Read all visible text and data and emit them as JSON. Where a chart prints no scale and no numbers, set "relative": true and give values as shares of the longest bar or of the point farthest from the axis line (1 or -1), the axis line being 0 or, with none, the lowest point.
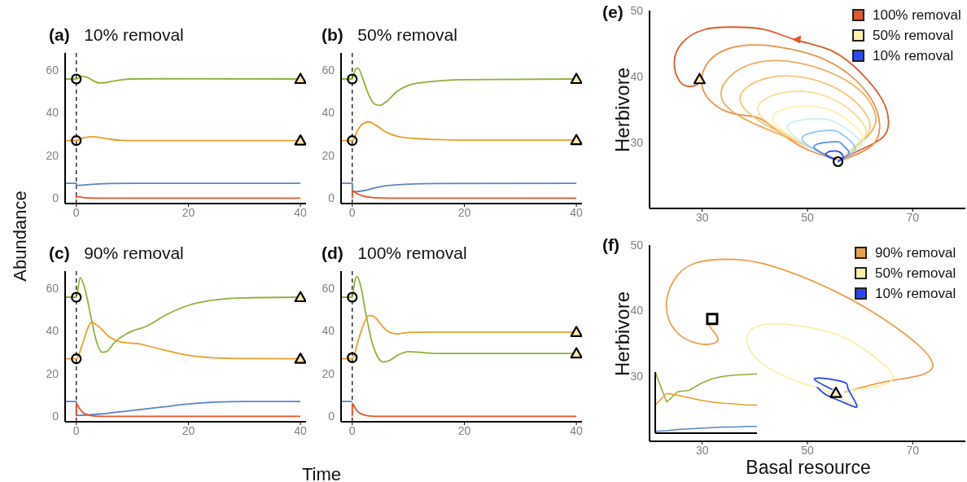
{
  "chart_data": [
    {
      "type": "line",
      "title": "(a)   10% removal",
      "ylabel": "Abundance",
      "xlim": [
        -2,
        41
      ],
      "ylim": [
        -2.5,
        68
      ],
      "xticks": [
        0,
        20,
        40
      ],
      "yticks": [
        0,
        20,
        40,
        60
      ],
      "ref_lines": [
        {
          "axis": "x",
          "value": 0,
          "line_style": "dashed",
          "color": "#000000"
        }
      ],
      "series": [
        {
          "color": "#8db33a",
          "x": [
            -2,
            0,
            1,
            2,
            3,
            4,
            5,
            6,
            8,
            10,
            15,
            40
          ],
          "values": [
            55.8,
            55.8,
            57,
            56.5,
            55,
            54,
            54,
            54.5,
            55.4,
            55.8,
            55.9,
            55.8
          ]
        },
        {
          "color": "#e8a02a",
          "x": [
            -2,
            0,
            1,
            2,
            3,
            4,
            6,
            8,
            10,
            40
          ],
          "values": [
            27,
            27,
            28,
            28.6,
            28.8,
            28.5,
            27.6,
            27.1,
            27,
            27
          ]
        },
        {
          "color": "#5c85c3",
          "x": [
            -2,
            0,
            0,
            2,
            4,
            6,
            10,
            40
          ],
          "values": [
            7,
            7,
            6,
            6.3,
            6.7,
            6.9,
            7,
            7
          ]
        },
        {
          "color": "#e8532a",
          "x": [
            0,
            0,
            1,
            2,
            4,
            40
          ],
          "values": [
            0,
            0.8,
            0.4,
            0.1,
            0,
            0
          ]
        },
        {
          "type": "scatter",
          "marker": "circle",
          "color": "#000000",
          "x": [
            0,
            0
          ],
          "values": [
            55.8,
            27
          ]
        },
        {
          "type": "scatter",
          "marker": "triangle",
          "color": "#000000",
          "x": [
            40,
            40
          ],
          "values": [
            55.8,
            27
          ]
        }
      ]
    },
    {
      "type": "line",
      "title": "(b)   50% removal",
      "xlim": [
        -2,
        41
      ],
      "ylim": [
        -2.5,
        68
      ],
      "xticks": [
        0,
        20,
        40
      ],
      "yticks": [
        0,
        20,
        40,
        60
      ],
      "ref_lines": [
        {
          "axis": "x",
          "value": 0,
          "line_style": "dashed",
          "color": "#000000"
        }
      ],
      "series": [
        {
          "color": "#8db33a",
          "x": [
            -2,
            0,
            0.5,
            1,
            2,
            3,
            4,
            5,
            6,
            8,
            10,
            13,
            20,
            40
          ],
          "values": [
            55.8,
            55.8,
            60,
            61,
            55,
            48,
            44,
            43.5,
            45,
            50,
            52.8,
            54.3,
            55.5,
            55.8
          ]
        },
        {
          "color": "#e8a02a",
          "x": [
            -2,
            0,
            1,
            2,
            3,
            4,
            6,
            8,
            10,
            15,
            20,
            40
          ],
          "values": [
            27,
            27,
            32,
            35,
            35.7,
            34.5,
            31,
            29,
            28.2,
            27.5,
            27.2,
            27.2
          ]
        },
        {
          "color": "#5c85c3",
          "x": [
            -2,
            0,
            0,
            2,
            4,
            6,
            8,
            10,
            15,
            40
          ],
          "values": [
            7,
            7,
            3,
            3.5,
            4.8,
            5.8,
            6.3,
            6.6,
            6.9,
            7
          ]
        },
        {
          "color": "#e8532a",
          "x": [
            0,
            0,
            1,
            2,
            3,
            5,
            8,
            40
          ],
          "values": [
            0,
            3.5,
            2,
            1,
            0.5,
            0.1,
            0,
            0
          ]
        },
        {
          "type": "scatter",
          "marker": "circle",
          "color": "#000000",
          "x": [
            0,
            0
          ],
          "values": [
            55.8,
            27
          ]
        },
        {
          "type": "scatter",
          "marker": "triangle",
          "color": "#000000",
          "x": [
            40,
            40
          ],
          "values": [
            55.8,
            27.2
          ]
        }
      ]
    },
    {
      "type": "line",
      "title": "(c)   90% removal",
      "xlabel": "Time",
      "xlim": [
        -2,
        41
      ],
      "ylim": [
        -2.5,
        68
      ],
      "xticks": [
        0,
        20,
        40
      ],
      "yticks": [
        0,
        20,
        40,
        60
      ],
      "ref_lines": [
        {
          "axis": "x",
          "value": 0,
          "line_style": "dashed",
          "color": "#000000"
        }
      ],
      "series": [
        {
          "color": "#8db33a",
          "x": [
            -2,
            0,
            0.7,
            1.5,
            2.5,
            3.5,
            4.6,
            5.5,
            6.8,
            9.2,
            12.6,
            16,
            20,
            25,
            30,
            40
          ],
          "values": [
            55.8,
            55.8,
            65,
            60,
            48,
            36,
            30,
            30.5,
            34.6,
            39,
            42.3,
            47.5,
            52,
            54.6,
            55.5,
            55.8
          ]
        },
        {
          "color": "#e8a02a",
          "x": [
            -2,
            0,
            1,
            2,
            2.7,
            4,
            6,
            8,
            11,
            15,
            20,
            25,
            30,
            40
          ],
          "values": [
            27,
            27,
            33,
            41,
            44,
            42,
            37,
            34.8,
            34,
            31.5,
            28.6,
            27.4,
            27.1,
            27
          ]
        },
        {
          "color": "#5c85c3",
          "x": [
            -2,
            0,
            0,
            5,
            10,
            15,
            20,
            25,
            30,
            40
          ],
          "values": [
            7,
            7,
            0.5,
            1.3,
            2.8,
            4.3,
            5.8,
            6.7,
            7,
            7
          ]
        },
        {
          "color": "#e8532a",
          "x": [
            0,
            0,
            0.5,
            1,
            2,
            3,
            5,
            40
          ],
          "values": [
            0,
            6,
            4,
            2.2,
            0.8,
            0.2,
            0,
            0
          ]
        },
        {
          "type": "scatter",
          "marker": "circle",
          "color": "#000000",
          "x": [
            0,
            0
          ],
          "values": [
            55.8,
            27
          ]
        },
        {
          "type": "scatter",
          "marker": "triangle",
          "color": "#000000",
          "x": [
            40,
            40
          ],
          "values": [
            55.8,
            27
          ]
        }
      ]
    },
    {
      "type": "line",
      "title": "(d)   100% removal",
      "xlim": [
        -2,
        41
      ],
      "ylim": [
        -2.5,
        68
      ],
      "xticks": [
        0,
        20,
        40
      ],
      "yticks": [
        0,
        20,
        40,
        60
      ],
      "ref_lines": [
        {
          "axis": "x",
          "value": 0,
          "line_style": "dashed",
          "color": "#000000"
        }
      ],
      "series": [
        {
          "color": "#8db33a",
          "x": [
            -2,
            0,
            0.5,
            0.9,
            1.5,
            2.5,
            3.5,
            4.5,
            5.5,
            6.5,
            8,
            10,
            12,
            15,
            40
          ],
          "values": [
            55.8,
            55.8,
            64,
            65.5,
            61,
            47,
            35,
            28,
            25.5,
            26,
            28.5,
            30.3,
            30,
            29.5,
            29.5
          ]
        },
        {
          "color": "#e8a02a",
          "x": [
            -2,
            0,
            1,
            2,
            3,
            4,
            5,
            6,
            7,
            8,
            10,
            15,
            40
          ],
          "values": [
            27,
            27,
            35,
            43,
            47.3,
            46.5,
            43.5,
            40.5,
            39,
            38.6,
            39.3,
            39.5,
            39.5
          ]
        },
        {
          "color": "#5c85c3",
          "x": [
            -2,
            0
          ],
          "values": [
            7,
            7
          ]
        },
        {
          "color": "#e8532a",
          "x": [
            0,
            0,
            0.5,
            1,
            2,
            3,
            5,
            40
          ],
          "values": [
            0,
            6,
            4,
            2.2,
            0.8,
            0.2,
            0,
            0
          ]
        },
        {
          "type": "scatter",
          "marker": "circle",
          "color": "#000000",
          "x": [
            0,
            0
          ],
          "values": [
            55.8,
            27.5
          ]
        },
        {
          "type": "scatter",
          "marker": "triangle",
          "color": "#000000",
          "x": [
            40,
            40
          ],
          "values": [
            39.5,
            29.5
          ]
        }
      ]
    },
    {
      "type": "line",
      "title": "(e)",
      "ylabel": "Herbivore",
      "legend": "top right",
      "xlim": [
        20,
        80
      ],
      "ylim": [
        20,
        50
      ],
      "xticks": [
        30,
        50,
        70
      ],
      "yticks": [
        30,
        40,
        50
      ],
      "series": [
        {
          "name": "100% removal",
          "color": "#dd5a2a",
          "x": [
            55.8,
            59.6,
            64.2,
            65.4,
            64.2,
            60.1,
            54.6,
            48,
            41.9,
            35.8,
            30.3,
            26.2,
            24.7,
            25.7,
            27.7,
            29.2,
            29.5
          ],
          "values": [
            27.1,
            28.7,
            30.7,
            33.2,
            36.5,
            40.6,
            43.9,
            45.5,
            47.1,
            47.5,
            47.1,
            45.1,
            42.2,
            39.3,
            38.5,
            38.9,
            39.5
          ]
        },
        {
          "color": "#e8934a",
          "x": [
            55.8,
            62.2,
            63.7,
            62.2,
            58.1,
            52,
            44.4,
            37.8,
            32.8,
            30.3,
            30,
            31.8,
            35.8,
            40.4,
            43.9,
            49.5,
            55.8
          ],
          "values": [
            27.1,
            29.5,
            32.8,
            36.5,
            40.2,
            43,
            44.5,
            44.7,
            43.4,
            41,
            38.5,
            36.1,
            34.4,
            33.8,
            32,
            29.1,
            27.4
          ]
        },
        {
          "color": "#eeae62",
          "x": [
            55.8,
            61.5,
            62.7,
            56,
            40.9,
            33.8,
            44.8,
            55.3
          ],
          "values": [
            27.1,
            31,
            34.8,
            40,
            42.2,
            36.5,
            31.2,
            27.5
          ]
        },
        {
          "color": "#f3c77c",
          "x": [
            55.8,
            60.5,
            61.6,
            55.5,
            43.9,
            37.3,
            46.5,
            55.3
          ],
          "values": [
            27.1,
            30.5,
            33.6,
            38.2,
            40,
            36.1,
            30.8,
            27.5
          ]
        },
        {
          "color": "#f8dd96",
          "x": [
            55.8,
            60,
            60.9,
            55.5,
            46.5,
            40.6,
            48.2,
            55.3
          ],
          "values": [
            27.1,
            29.9,
            32.4,
            36.3,
            37.7,
            34.8,
            30.3,
            27.5
          ]
        },
        {
          "name": "50% removal",
          "color": "#fff0b0",
          "x": [
            55.8,
            59.6,
            60.4,
            56,
            49,
            43.4,
            49.6,
            55.3
          ],
          "values": [
            27.1,
            29.3,
            31.1,
            34.3,
            35.5,
            33.6,
            29.7,
            27.5
          ]
        },
        {
          "color": "#c8f0f5",
          "x": [
            55.8,
            59.2,
            59.9,
            56,
            51.5,
            46.2,
            51,
            55.3
          ],
          "values": [
            27.1,
            28.8,
            30.3,
            32.8,
            33.6,
            32.4,
            29.1,
            27.5
          ]
        },
        {
          "color": "#8ccaf0",
          "x": [
            55.8,
            58.4,
            58.9,
            56.5,
            53.5,
            49,
            52.4,
            55.3
          ],
          "values": [
            27.1,
            28.4,
            29.5,
            31.3,
            31.8,
            30.7,
            28.5,
            27.5
          ]
        },
        {
          "color": "#5a8ef0",
          "x": [
            55.8,
            57.5,
            57.8,
            56.5,
            55.1,
            51.3,
            53.5,
            55.3
          ],
          "values": [
            27.1,
            28,
            28.7,
            29.8,
            30.1,
            29.5,
            28.1,
            27.5
          ]
        },
        {
          "name": "10% removal",
          "color": "#2a4af0",
          "x": [
            55.8,
            56.6,
            56.8,
            55.6,
            53.5,
            54.6,
            55.3
          ],
          "values": [
            27.1,
            27.6,
            27.9,
            28.7,
            28.3,
            27.6,
            27.5
          ]
        },
        {
          "type": "scatter",
          "marker": "circle",
          "color": "#000000",
          "x": [
            55.8
          ],
          "values": [
            27.1
          ]
        },
        {
          "type": "scatter",
          "marker": "triangle",
          "color": "#000000",
          "x": [
            29.5
          ],
          "values": [
            39.6
          ]
        }
      ]
    },
    {
      "type": "line",
      "title": "(f)",
      "xlabel": "Basal resource",
      "ylabel": "Herbivore",
      "legend": "top right",
      "xlim": [
        20,
        80
      ],
      "ylim": [
        20,
        50
      ],
      "xticks": [
        30,
        50,
        70
      ],
      "yticks": [
        30,
        40,
        50
      ],
      "series": [
        {
          "name": "90% removal",
          "color": "#e8a050",
          "x": [
            57,
            66,
            73.8,
            67,
            54.8,
            43.2,
            36.1,
            28.5,
            24.4,
            23.2,
            24.9,
            29.5,
            33,
            31.5,
            31.9
          ],
          "values": [
            27.5,
            29.3,
            31.4,
            37.3,
            43.1,
            46.8,
            47.8,
            47.2,
            44.3,
            40.6,
            36.9,
            34.9,
            35.5,
            37.5,
            38.7
          ]
        },
        {
          "name": "50% removal",
          "color": "#fbeea8",
          "x": [
            57.3,
            66,
            62.9,
            56.3,
            48.2,
            42.2,
            39.1,
            38.6,
            40.6,
            44.7,
            49.7,
            54.8,
            58.9
          ],
          "values": [
            27.7,
            29.3,
            32.8,
            36.1,
            37.7,
            37.9,
            36.9,
            34.9,
            32.4,
            30.3,
            28.7,
            27.4,
            25.4
          ]
        },
        {
          "name": "10% removal",
          "color": "#2a45e8",
          "x": [
            54.8,
            51.3,
            54.3,
            57.3,
            57.8,
            59.4,
            57.3,
            53.8,
            51.8
          ],
          "values": [
            27.9,
            29.5,
            29.5,
            28.9,
            27.9,
            25.4,
            25.8,
            27,
            28.3
          ]
        },
        {
          "type": "scatter",
          "marker": "square",
          "color": "#000000",
          "x": [
            31.9
          ],
          "values": [
            38.7
          ]
        },
        {
          "type": "scatter",
          "marker": "triangle",
          "color": "#000000",
          "x": [
            55.4
          ],
          "values": [
            27.4
          ]
        }
      ]
    },
    {
      "type": "line",
      "relative": true,
      "categories": [
        null,
        null,
        null,
        null,
        null,
        null,
        null,
        null,
        null,
        null
      ],
      "series": [
        {
          "color": "#8db33a",
          "values": [
            1,
            0.51,
            0.68,
            0.7,
            0.81,
            0.89,
            0.93,
            0.95,
            0.96,
            0.97
          ]
        },
        {
          "color": "#e8a02a",
          "values": [
            0.46,
            0.65,
            0.62,
            0.58,
            0.54,
            0.51,
            0.49,
            0.48,
            0.46,
            0.46
          ]
        },
        {
          "color": "#5c85c3",
          "values": [
            0.03,
            0.04,
            0.06,
            0.07,
            0.08,
            0.09,
            0.1,
            0.1,
            0.11,
            0.11
          ]
        }
      ]
    }
  ]
}
